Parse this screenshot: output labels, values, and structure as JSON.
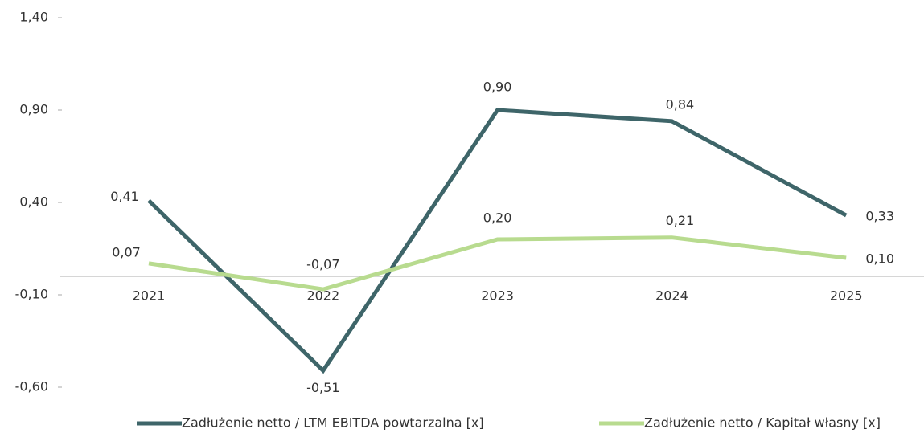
{
  "chart_data": {
    "type": "line",
    "categories": [
      "2021",
      "2022",
      "2023",
      "2024",
      "2025"
    ],
    "series": [
      {
        "name": "Zadłużenie netto / LTM EBITDA powtarzalna [x]",
        "color": "#3e6569",
        "values": [
          0.41,
          -0.51,
          0.9,
          0.84,
          0.33
        ],
        "value_labels": [
          "0,41",
          "-0,51",
          "0,90",
          "0,84",
          "0,33"
        ]
      },
      {
        "name": "Zadłużenie netto / Kapitał własny [x]",
        "color": "#b8db8f",
        "values": [
          0.07,
          -0.07,
          0.2,
          0.21,
          0.1
        ],
        "value_labels": [
          "0,07",
          "-0,07",
          "0,20",
          "0,21",
          "0,10"
        ]
      }
    ],
    "ylim": [
      -0.6,
      1.4
    ],
    "yticks": [
      {
        "value": 1.4,
        "label": "1,40"
      },
      {
        "value": 0.9,
        "label": "0,90"
      },
      {
        "value": 0.4,
        "label": "0,40"
      },
      {
        "value": -0.1,
        "label": "-0,10"
      },
      {
        "value": -0.6,
        "label": "-0,60"
      }
    ],
    "legend": "bottom"
  }
}
